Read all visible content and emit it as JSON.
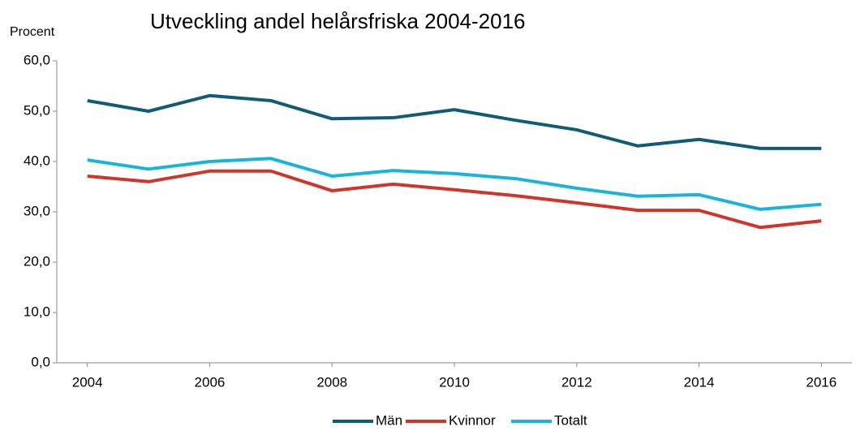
{
  "chart_data": {
    "type": "line",
    "title": "Utveckling andel helårsfriska 2004-2016",
    "ylabel": "Procent",
    "x": [
      2004,
      2005,
      2006,
      2007,
      2008,
      2009,
      2010,
      2011,
      2012,
      2013,
      2014,
      2015,
      2016
    ],
    "xlim": [
      2003.5,
      2016.5
    ],
    "xticks": [
      2004,
      2006,
      2008,
      2010,
      2012,
      2014,
      2016
    ],
    "ylim": [
      0,
      60
    ],
    "yticks": [
      {
        "value": 0,
        "label": "0,0"
      },
      {
        "value": 10,
        "label": "10,0"
      },
      {
        "value": 20,
        "label": "20,0"
      },
      {
        "value": 30,
        "label": "30,0"
      },
      {
        "value": 40,
        "label": "40,0"
      },
      {
        "value": 50,
        "label": "50,0"
      },
      {
        "value": 60,
        "label": "60,0"
      }
    ],
    "grid": false,
    "legend": "bottom",
    "series": [
      {
        "name": "Män",
        "color": "#0f5b78",
        "values": [
          52.1,
          50.0,
          53.1,
          52.1,
          48.5,
          48.7,
          50.3,
          48.2,
          46.3,
          43.1,
          44.4,
          42.6,
          42.6
        ]
      },
      {
        "name": "Kvinnor",
        "color": "#d0352b",
        "values": [
          37.1,
          36.0,
          38.1,
          38.1,
          34.2,
          35.5,
          34.4,
          33.2,
          31.8,
          30.3,
          30.3,
          26.9,
          28.2
        ]
      },
      {
        "name": "Totalt",
        "color": "#1ab3dc",
        "values": [
          40.3,
          38.5,
          40.0,
          40.6,
          37.1,
          38.2,
          37.6,
          36.6,
          34.7,
          33.1,
          33.4,
          30.5,
          31.5
        ]
      }
    ]
  }
}
